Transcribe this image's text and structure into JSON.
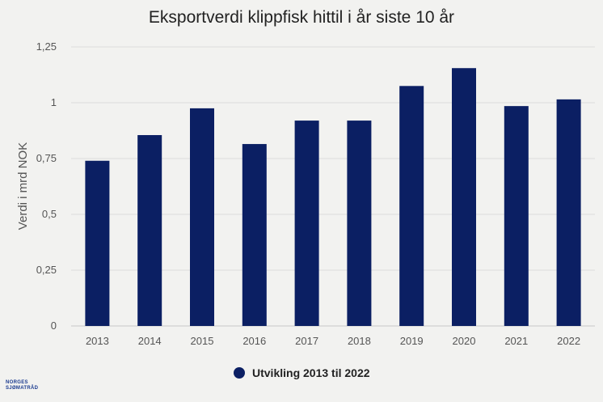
{
  "chart_data": {
    "type": "bar",
    "title": "Eksportverdi klippfisk hittil i år siste 10 år",
    "ylabel": "Verdi i mrd NOK",
    "xlabel": "",
    "categories": [
      "2013",
      "2014",
      "2015",
      "2016",
      "2017",
      "2018",
      "2019",
      "2020",
      "2021",
      "2022"
    ],
    "series": [
      {
        "name": "Utvikling 2013 til 2022",
        "values": [
          0.74,
          0.855,
          0.975,
          0.815,
          0.92,
          0.92,
          1.075,
          1.155,
          0.985,
          1.015
        ]
      }
    ],
    "ylim": [
      0,
      1.25
    ],
    "yticks": [
      0,
      0.25,
      0.5,
      0.75,
      1,
      1.25
    ],
    "ytick_labels": [
      "0",
      "0,25",
      "0,5",
      "0,75",
      "1",
      "1,25"
    ],
    "grid": true,
    "legend_position": "bottom",
    "colors": {
      "bar": "#0b1f63",
      "grid": "#dcdcdc",
      "background": "#f2f2f0"
    }
  },
  "logo": {
    "line1": "NORGES",
    "line2": "SJØMATRÅD"
  }
}
